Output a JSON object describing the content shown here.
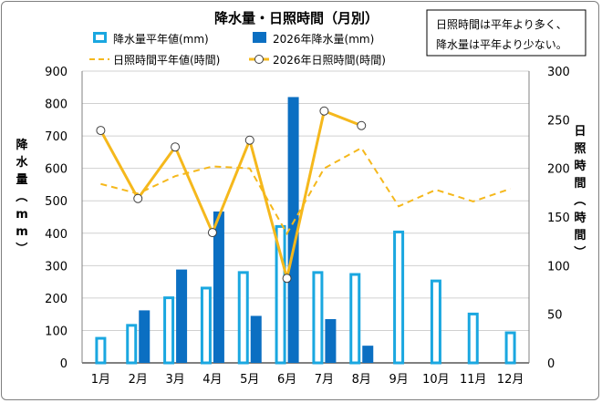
{
  "chart_data": {
    "type": "bar",
    "title": "降水量・日照時間（月別）",
    "note": [
      "日照時間は平年より多く、",
      "降水量は平年より少ない。"
    ],
    "categories": [
      "1月",
      "2月",
      "3月",
      "4月",
      "5月",
      "6月",
      "7月",
      "8月",
      "9月",
      "10月",
      "11月",
      "12月"
    ],
    "left_axis": {
      "label": "降水量（mm）",
      "ylim": [
        0,
        900
      ],
      "ticks": [
        "0",
        "100",
        "200",
        "300",
        "400",
        "500",
        "600",
        "700",
        "800",
        "900"
      ]
    },
    "right_axis": {
      "label": "日照時間（時間）",
      "ylim": [
        0,
        300
      ],
      "ticks": [
        "0",
        "50",
        "100",
        "150",
        "200",
        "250",
        "300"
      ]
    },
    "series": [
      {
        "name": "降水量平年値(mm)",
        "kind": "bar-outline",
        "axis": "left",
        "color": "#1aa7e0",
        "values": [
          80,
          120,
          205,
          235,
          283,
          425,
          283,
          277,
          408,
          257,
          155,
          97
        ]
      },
      {
        "name": "2026年降水量(mm)",
        "kind": "bar-filled",
        "axis": "left",
        "color": "#0b6fc2",
        "values": [
          null,
          162,
          288,
          467,
          145,
          820,
          135,
          53,
          null,
          null,
          null,
          null
        ]
      },
      {
        "name": "日照時間平年値(時間)",
        "kind": "line-dashed",
        "axis": "right",
        "color": "#f5b81c",
        "values": [
          184,
          174,
          192,
          202,
          200,
          133,
          200,
          221,
          161,
          178,
          166,
          179
        ]
      },
      {
        "name": "2026年日照時間(時間)",
        "kind": "line-markers",
        "axis": "right",
        "color": "#f5b81c",
        "values": [
          239,
          169,
          222,
          134,
          229,
          87,
          259,
          244,
          null,
          null,
          null,
          null
        ]
      }
    ],
    "grid": true,
    "legend_position": "top-left"
  }
}
